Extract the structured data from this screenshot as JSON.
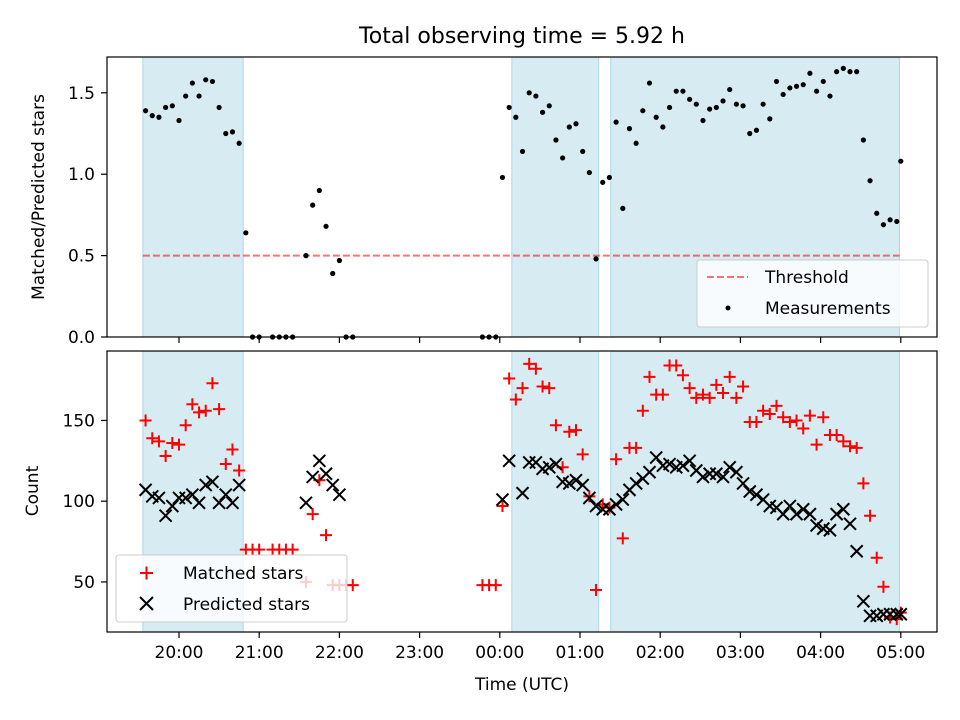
{
  "title": "Total observing time = 5.92 h",
  "xlabel": "Time (UTC)",
  "x_tick_labels": [
    "20:00",
    "21:00",
    "22:00",
    "23:00",
    "00:00",
    "01:00",
    "02:00",
    "03:00",
    "04:00",
    "05:00"
  ],
  "observing_windows": [
    [
      "19:33",
      "20:48"
    ],
    [
      "00:09",
      "01:14"
    ],
    [
      "01:23",
      "04:59"
    ]
  ],
  "colors": {
    "window_fill": "#add8e6",
    "threshold": "#ff0000",
    "measurements": "#000000",
    "matched": "#ff0000",
    "predicted": "#000000"
  },
  "chart_data": [
    {
      "type": "scatter",
      "ylabel": "Matched/Predicted stars",
      "ylim": [
        0,
        1.72
      ],
      "y_tick_labels": [
        "0.0",
        "0.5",
        "1.0",
        "1.5"
      ],
      "legend": {
        "placement": "lower-right",
        "entries": [
          "Threshold",
          "Measurements"
        ]
      },
      "threshold": {
        "name": "Threshold",
        "value": 0.5,
        "x_range": [
          "19:33",
          "04:59"
        ]
      },
      "series": [
        {
          "name": "Measurements",
          "x": [
            "19:35",
            "19:40",
            "19:45",
            "19:50",
            "19:55",
            "20:00",
            "20:05",
            "20:10",
            "20:15",
            "20:20",
            "20:25",
            "20:30",
            "20:35",
            "20:40",
            "20:45",
            "20:50",
            "20:55",
            "21:00",
            "21:10",
            "21:15",
            "21:20",
            "21:25",
            "21:35",
            "21:40",
            "21:45",
            "21:50",
            "21:55",
            "22:00",
            "22:05",
            "22:10",
            "23:47",
            "23:52",
            "23:57",
            "00:02",
            "00:07",
            "00:12",
            "00:17",
            "00:22",
            "00:27",
            "00:32",
            "00:37",
            "00:42",
            "00:47",
            "00:52",
            "00:57",
            "01:02",
            "01:07",
            "01:12",
            "01:17",
            "01:22",
            "01:27",
            "01:32",
            "01:37",
            "01:42",
            "01:47",
            "01:52",
            "01:57",
            "02:02",
            "02:07",
            "02:12",
            "02:17",
            "02:22",
            "02:27",
            "02:32",
            "02:37",
            "02:42",
            "02:47",
            "02:52",
            "02:57",
            "03:02",
            "03:07",
            "03:12",
            "03:17",
            "03:22",
            "03:27",
            "03:32",
            "03:37",
            "03:42",
            "03:47",
            "03:52",
            "03:57",
            "04:02",
            "04:07",
            "04:12",
            "04:17",
            "04:22",
            "04:27",
            "04:32",
            "04:37",
            "04:42",
            "04:47",
            "04:52",
            "04:57",
            "05:00"
          ],
          "y": [
            1.39,
            1.36,
            1.35,
            1.41,
            1.42,
            1.33,
            1.48,
            1.56,
            1.48,
            1.58,
            1.57,
            1.41,
            1.25,
            1.26,
            1.19,
            0.64,
            0,
            0,
            0,
            0,
            0,
            0,
            0.5,
            0.81,
            0.9,
            0.68,
            0.39,
            0.47,
            0,
            0,
            0,
            0,
            0,
            0.98,
            1.41,
            1.35,
            1.14,
            1.5,
            1.48,
            1.38,
            1.42,
            1.21,
            1.1,
            1.29,
            1.31,
            1.14,
            1.01,
            0.48,
            0.95,
            0.98,
            1.32,
            0.79,
            1.28,
            1.19,
            1.39,
            1.56,
            1.35,
            1.29,
            1.41,
            1.51,
            1.51,
            1.46,
            1.43,
            1.33,
            1.4,
            1.41,
            1.45,
            1.52,
            1.43,
            1.42,
            1.25,
            1.27,
            1.43,
            1.34,
            1.57,
            1.49,
            1.53,
            1.54,
            1.55,
            1.62,
            1.51,
            1.57,
            1.48,
            1.63,
            1.65,
            1.63,
            1.63,
            1.21,
            0.96,
            0.76,
            0.69,
            0.72,
            0.71,
            1.08
          ]
        }
      ]
    },
    {
      "type": "scatter",
      "ylabel": "Count",
      "ylim": [
        19,
        193
      ],
      "y_tick_labels": [
        "50",
        "100",
        "150"
      ],
      "legend": {
        "placement": "lower-left",
        "entries": [
          "Matched stars",
          "Predicted stars"
        ]
      },
      "series": [
        {
          "name": "Matched stars",
          "x": [
            "19:35",
            "19:40",
            "19:45",
            "19:50",
            "19:55",
            "20:00",
            "20:05",
            "20:10",
            "20:15",
            "20:20",
            "20:25",
            "20:30",
            "20:35",
            "20:40",
            "20:45",
            "20:50",
            "20:55",
            "21:00",
            "21:10",
            "21:15",
            "21:20",
            "21:25",
            "21:35",
            "21:40",
            "21:45",
            "21:50",
            "21:55",
            "22:00",
            "22:05",
            "22:10",
            "23:47",
            "23:52",
            "23:57",
            "00:02",
            "00:07",
            "00:12",
            "00:17",
            "00:22",
            "00:27",
            "00:32",
            "00:37",
            "00:42",
            "00:47",
            "00:52",
            "00:57",
            "01:02",
            "01:07",
            "01:12",
            "01:17",
            "01:22",
            "01:27",
            "01:32",
            "01:37",
            "01:42",
            "01:47",
            "01:52",
            "01:57",
            "02:02",
            "02:07",
            "02:12",
            "02:17",
            "02:22",
            "02:27",
            "02:32",
            "02:37",
            "02:42",
            "02:47",
            "02:52",
            "02:57",
            "03:02",
            "03:07",
            "03:12",
            "03:17",
            "03:22",
            "03:27",
            "03:32",
            "03:37",
            "03:42",
            "03:47",
            "03:52",
            "03:57",
            "04:02",
            "04:07",
            "04:12",
            "04:17",
            "04:22",
            "04:27",
            "04:32",
            "04:37",
            "04:42",
            "04:47",
            "04:52",
            "04:57",
            "05:00"
          ],
          "y": [
            150,
            139,
            137,
            128,
            136,
            135,
            147,
            160,
            155,
            156,
            173,
            157,
            123,
            132,
            119,
            70,
            70,
            70,
            70,
            70,
            70,
            70,
            50,
            92,
            113,
            79,
            48,
            48,
            48,
            48,
            48,
            48,
            48,
            97,
            176,
            163,
            170,
            185,
            182,
            171,
            170,
            147,
            121,
            143,
            144,
            129,
            103,
            45,
            98,
            96,
            126,
            77,
            133,
            133,
            156,
            177,
            166,
            166,
            184,
            184,
            178,
            170,
            164,
            166,
            164,
            172,
            167,
            177,
            164,
            171,
            149,
            149,
            156,
            154,
            159,
            152,
            149,
            150,
            145,
            153,
            135,
            152,
            141,
            141,
            137,
            134,
            133,
            111,
            91,
            65,
            47,
            28,
            27,
            31
          ]
        },
        {
          "name": "Predicted stars",
          "x": [
            "19:35",
            "19:40",
            "19:45",
            "19:50",
            "19:55",
            "20:00",
            "20:05",
            "20:10",
            "20:15",
            "20:20",
            "20:25",
            "20:30",
            "20:35",
            "20:40",
            "20:45",
            "21:35",
            "21:40",
            "21:45",
            "21:50",
            "21:55",
            "22:00",
            "00:02",
            "00:07",
            "00:17",
            "00:22",
            "00:27",
            "00:32",
            "00:37",
            "00:42",
            "00:47",
            "00:52",
            "00:57",
            "01:02",
            "01:07",
            "01:12",
            "01:17",
            "01:22",
            "01:27",
            "01:32",
            "01:37",
            "01:42",
            "01:47",
            "01:52",
            "01:57",
            "02:02",
            "02:07",
            "02:12",
            "02:17",
            "02:22",
            "02:27",
            "02:32",
            "02:37",
            "02:42",
            "02:47",
            "02:52",
            "02:57",
            "03:02",
            "03:07",
            "03:12",
            "03:17",
            "03:22",
            "03:27",
            "03:32",
            "03:37",
            "03:42",
            "03:47",
            "03:52",
            "03:57",
            "04:02",
            "04:07",
            "04:12",
            "04:17",
            "04:22",
            "04:27",
            "04:32",
            "04:37",
            "04:42",
            "04:47",
            "04:52",
            "04:57",
            "05:00"
          ],
          "y": [
            107,
            103,
            102,
            91,
            97,
            102,
            102,
            104,
            99,
            110,
            112,
            99,
            104,
            99,
            110,
            99,
            115,
            125,
            117,
            110,
            104,
            101,
            125,
            105,
            124,
            124,
            120,
            121,
            123,
            112,
            111,
            113,
            110,
            102,
            97,
            95,
            95,
            98,
            101,
            107,
            111,
            114,
            118,
            127,
            122,
            123,
            121,
            122,
            125,
            119,
            115,
            117,
            117,
            115,
            121,
            118,
            111,
            106,
            104,
            101,
            97,
            96,
            92,
            97,
            92,
            95,
            92,
            85,
            83,
            82,
            92,
            95,
            86,
            69,
            38,
            29,
            29,
            30,
            30,
            30,
            30
          ]
        }
      ]
    }
  ]
}
